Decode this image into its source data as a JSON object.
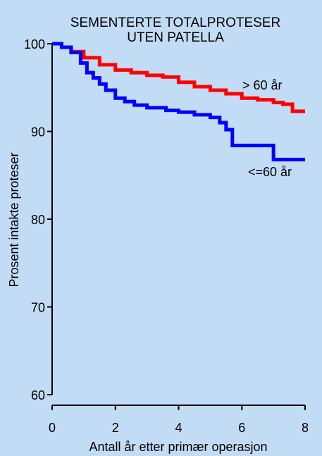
{
  "chart_data": {
    "type": "line",
    "title": [
      "SEMENTERTE TOTALPROTESER",
      "UTEN PATELLA"
    ],
    "xlabel": "Antall år etter primær operasjon",
    "ylabel": "Prosent intakte proteser",
    "xlim": [
      0,
      8
    ],
    "ylim": [
      60,
      100
    ],
    "xticks": [
      "0",
      "2",
      "4",
      "6",
      "8"
    ],
    "yticks": [
      "60",
      "70",
      "80",
      "90",
      "100"
    ],
    "grid": false,
    "series": [
      {
        "name": "> 60 år",
        "color": "#ff0000",
        "x": [
          0,
          0.3,
          0.6,
          1.0,
          1.5,
          2.0,
          2.5,
          3.0,
          3.5,
          4.0,
          4.5,
          5.0,
          5.5,
          6.0,
          6.5,
          7.0,
          7.3,
          7.6,
          8.0
        ],
        "y": [
          100,
          99.6,
          99.1,
          98.4,
          97.6,
          97.0,
          96.7,
          96.4,
          96.2,
          95.6,
          95.1,
          94.7,
          94.3,
          93.8,
          93.6,
          93.3,
          93.1,
          92.3,
          92.3
        ]
      },
      {
        "name": "<=60 år",
        "color": "#0000ff",
        "x": [
          0,
          0.3,
          0.6,
          0.9,
          1.1,
          1.3,
          1.5,
          1.7,
          2.0,
          2.3,
          2.6,
          3.0,
          3.6,
          4.0,
          4.5,
          5.0,
          5.3,
          5.5,
          5.7,
          6.0,
          6.5,
          7.0,
          7.4,
          8.0
        ],
        "y": [
          100,
          99.6,
          99.0,
          97.8,
          96.7,
          96.1,
          95.4,
          94.7,
          93.8,
          93.4,
          93.0,
          92.7,
          92.4,
          92.2,
          91.9,
          91.6,
          91.0,
          90.2,
          88.4,
          88.4,
          88.4,
          86.8,
          86.8,
          86.8
        ]
      }
    ]
  }
}
